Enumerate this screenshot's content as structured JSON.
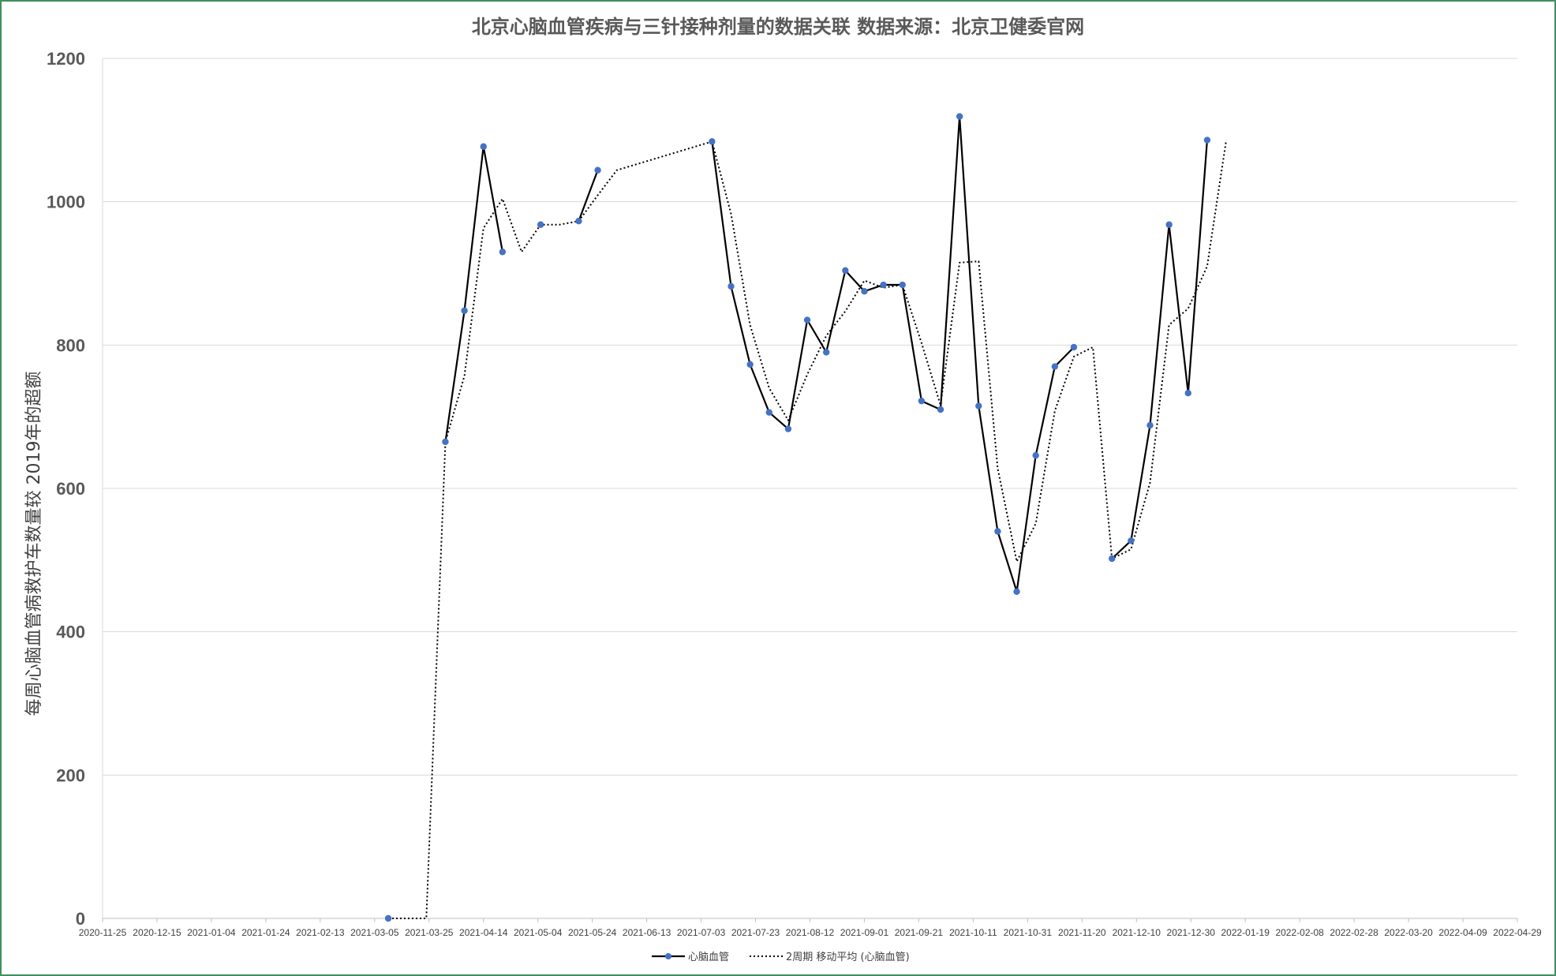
{
  "chart_data": {
    "type": "line",
    "title": "北京心脑血管疾病与三针接种剂量的数据关联  数据来源：北京卫健委官网",
    "ylabel": "每周心脑血管病救护车数量较 2019年的超额",
    "xlabel": "",
    "ylim": [
      0,
      1200
    ],
    "yticks": [
      "0",
      "200",
      "400",
      "600",
      "800",
      "1000",
      "1200"
    ],
    "x_tick_labels": [
      "2020-11-25",
      "2020-12-15",
      "2021-01-04",
      "2021-01-24",
      "2021-02-13",
      "2021-03-05",
      "2021-03-25",
      "2021-04-14",
      "2021-05-04",
      "2021-05-24",
      "2021-06-13",
      "2021-07-03",
      "2021-07-23",
      "2021-08-12",
      "2021-09-01",
      "2021-09-21",
      "2021-10-11",
      "2021-10-31",
      "2021-11-20",
      "2021-12-10",
      "2021-12-30",
      "2022-01-19",
      "2022-02-08",
      "2022-02-28",
      "2022-03-20",
      "2022-04-09",
      "2022-04-29"
    ],
    "x_range": [
      "2020-11-25",
      "2022-04-29"
    ],
    "grid": true,
    "legend_position": "bottom",
    "series": [
      {
        "name": "心脑血管",
        "color": "#000000",
        "marker_color": "#4472c4",
        "style": "solid",
        "points": [
          [
            "2021-03-10",
            0
          ],
          null,
          [
            "2021-03-31",
            665
          ],
          [
            "2021-04-07",
            848
          ],
          [
            "2021-04-14",
            1077
          ],
          [
            "2021-04-21",
            930
          ],
          null,
          [
            "2021-05-05",
            968
          ],
          null,
          [
            "2021-05-19",
            973
          ],
          [
            "2021-05-26",
            1044
          ],
          null,
          [
            "2021-07-07",
            1084
          ],
          [
            "2021-07-14",
            882
          ],
          [
            "2021-07-21",
            773
          ],
          [
            "2021-07-28",
            706
          ],
          [
            "2021-08-04",
            683
          ],
          [
            "2021-08-11",
            835
          ],
          [
            "2021-08-18",
            790
          ],
          [
            "2021-08-25",
            904
          ],
          [
            "2021-09-01",
            875
          ],
          [
            "2021-09-08",
            884
          ],
          [
            "2021-09-15",
            884
          ],
          [
            "2021-09-22",
            722
          ],
          [
            "2021-09-29",
            710
          ],
          [
            "2021-10-06",
            1119
          ],
          [
            "2021-10-13",
            715
          ],
          [
            "2021-10-20",
            540
          ],
          [
            "2021-10-27",
            456
          ],
          [
            "2021-11-03",
            646
          ],
          [
            "2021-11-10",
            770
          ],
          [
            "2021-11-17",
            797
          ],
          null,
          [
            "2021-12-01",
            502
          ],
          [
            "2021-12-08",
            527
          ],
          [
            "2021-12-15",
            688
          ],
          [
            "2021-12-22",
            968
          ],
          [
            "2021-12-29",
            733
          ],
          [
            "2022-01-05",
            1086
          ]
        ]
      },
      {
        "name": "2周期 移动平均 (心脑血管)",
        "color": "#000000",
        "style": "dotted",
        "points": [
          [
            "2021-03-10",
            0
          ],
          [
            "2021-03-17",
            0
          ],
          [
            "2021-03-24",
            0
          ],
          [
            "2021-03-31",
            665
          ],
          [
            "2021-04-07",
            757
          ],
          [
            "2021-04-14",
            963
          ],
          [
            "2021-04-21",
            1004
          ],
          [
            "2021-04-28",
            930
          ],
          [
            "2021-05-05",
            968
          ],
          [
            "2021-05-12",
            968
          ],
          [
            "2021-05-19",
            973
          ],
          [
            "2021-05-26",
            1009
          ],
          [
            "2021-06-02",
            1044
          ],
          [
            "2021-07-07",
            1084
          ],
          [
            "2021-07-14",
            983
          ],
          [
            "2021-07-21",
            828
          ],
          [
            "2021-07-28",
            740
          ],
          [
            "2021-08-04",
            695
          ],
          [
            "2021-08-11",
            759
          ],
          [
            "2021-08-18",
            813
          ],
          [
            "2021-08-25",
            847
          ],
          [
            "2021-09-01",
            890
          ],
          [
            "2021-09-08",
            880
          ],
          [
            "2021-09-15",
            884
          ],
          [
            "2021-09-22",
            803
          ],
          [
            "2021-09-29",
            716
          ],
          [
            "2021-10-06",
            915
          ],
          [
            "2021-10-13",
            917
          ],
          [
            "2021-10-20",
            628
          ],
          [
            "2021-10-27",
            498
          ],
          [
            "2021-11-03",
            551
          ],
          [
            "2021-11-10",
            708
          ],
          [
            "2021-11-17",
            784
          ],
          [
            "2021-11-24",
            797
          ],
          [
            "2021-12-01",
            502
          ],
          [
            "2021-12-08",
            515
          ],
          [
            "2021-12-15",
            608
          ],
          [
            "2021-12-22",
            828
          ],
          [
            "2021-12-29",
            851
          ],
          [
            "2022-01-05",
            910
          ],
          [
            "2022-01-12",
            1086
          ]
        ]
      }
    ]
  }
}
